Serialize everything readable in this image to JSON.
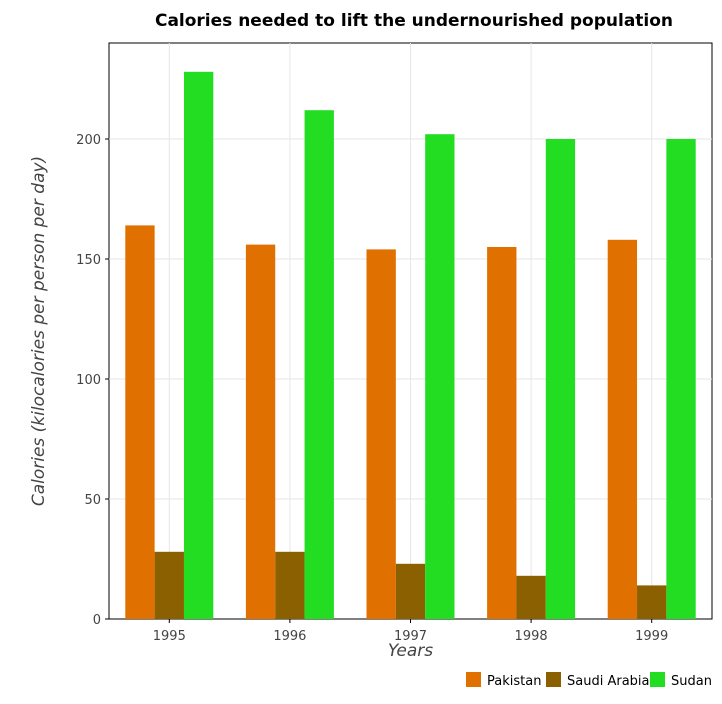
{
  "chart_data": {
    "type": "bar",
    "title": "Calories needed to lift the undernourished population",
    "xlabel": "Years",
    "ylabel": "Calories (kilocalories per person per day)",
    "categories": [
      "1995",
      "1996",
      "1997",
      "1998",
      "1999"
    ],
    "series": [
      {
        "name": "Pakistan",
        "color": "#e07000",
        "values": [
          164,
          156,
          154,
          155,
          158
        ]
      },
      {
        "name": "Saudi Arabia",
        "color": "#8b6000",
        "values": [
          28,
          28,
          23,
          18,
          14
        ]
      },
      {
        "name": "Sudan",
        "color": "#22dd22",
        "values": [
          228,
          212,
          202,
          200,
          200
        ]
      }
    ],
    "ylim": [
      0,
      240
    ],
    "yticks": [
      0,
      50,
      100,
      150,
      200
    ],
    "grid": true,
    "legend_position": "bottom-right"
  }
}
